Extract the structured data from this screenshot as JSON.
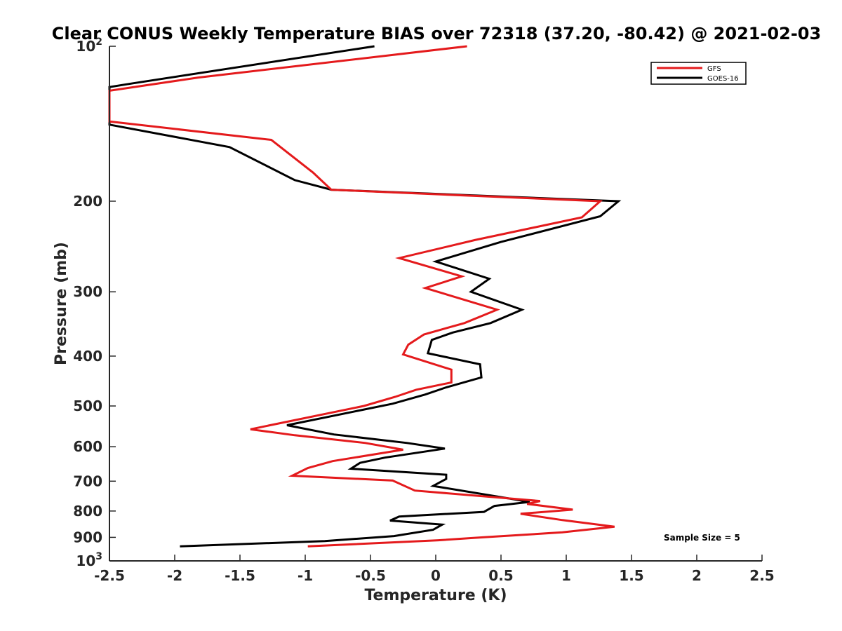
{
  "chart_data": {
    "type": "line",
    "title": "Clear CONUS Weekly Temperature BIAS over 72318 (37.20, -80.42) @ 2021-02-03",
    "xlabel": "Temperature (K)",
    "ylabel": "Pressure (mb)",
    "xlim": [
      -2.5,
      2.5
    ],
    "ylim": [
      100,
      1000
    ],
    "yscale": "log",
    "yreversed": true,
    "grid": false,
    "legend_position": "top-right",
    "x_ticks": [
      -2.5,
      -2,
      -1.5,
      -1,
      -0.5,
      0,
      0.5,
      1,
      1.5,
      2,
      2.5
    ],
    "x_tick_labels": [
      "-2.5",
      "-2",
      "-1.5",
      "-1",
      "-0.5",
      "0",
      "0.5",
      "1",
      "1.5",
      "2",
      "2.5"
    ],
    "y_ticks": [
      100,
      200,
      300,
      400,
      500,
      600,
      700,
      800,
      900,
      1000
    ],
    "y_tick_labels": [
      {
        "base": "10",
        "exp": "2"
      },
      {
        "base": "200",
        "exp": ""
      },
      {
        "base": "300",
        "exp": ""
      },
      {
        "base": "400",
        "exp": ""
      },
      {
        "base": "500",
        "exp": ""
      },
      {
        "base": "600",
        "exp": ""
      },
      {
        "base": "700",
        "exp": ""
      },
      {
        "base": "800",
        "exp": ""
      },
      {
        "base": "900",
        "exp": ""
      },
      {
        "base": "10",
        "exp": "3"
      }
    ],
    "annotation": "Sample Size = 5",
    "series": [
      {
        "name": "GFS",
        "color": "#e41a1c",
        "points": [
          [
            0.24,
            100
          ],
          [
            -1.82,
            115
          ],
          [
            -2.5,
            122
          ],
          [
            -2.5,
            140
          ],
          [
            -1.26,
            152
          ],
          [
            -0.94,
            176
          ],
          [
            -0.8,
            190
          ],
          [
            1.26,
            200
          ],
          [
            1.12,
            215
          ],
          [
            0.3,
            238
          ],
          [
            -0.28,
            258
          ],
          [
            0.2,
            280
          ],
          [
            -0.08,
            295
          ],
          [
            0.47,
            325
          ],
          [
            0.22,
            345
          ],
          [
            -0.09,
            363
          ],
          [
            -0.21,
            380
          ],
          [
            -0.25,
            397
          ],
          [
            0.12,
            425
          ],
          [
            0.12,
            450
          ],
          [
            -0.15,
            465
          ],
          [
            -0.31,
            480
          ],
          [
            -0.55,
            500
          ],
          [
            -1.42,
            555
          ],
          [
            -1.08,
            570
          ],
          [
            -0.54,
            590
          ],
          [
            -0.25,
            608
          ],
          [
            -0.79,
            640
          ],
          [
            -0.98,
            660
          ],
          [
            -1.1,
            683
          ],
          [
            -0.33,
            698
          ],
          [
            -0.16,
            730
          ],
          [
            0.8,
            765
          ],
          [
            0.7,
            775
          ],
          [
            1.05,
            795
          ],
          [
            0.65,
            810
          ],
          [
            0.97,
            833
          ],
          [
            1.37,
            858
          ],
          [
            0.97,
            880
          ],
          [
            0.36,
            900
          ],
          [
            0.02,
            912
          ],
          [
            -0.98,
            937
          ]
        ]
      },
      {
        "name": "GOES-16",
        "color": "#000000",
        "points": [
          [
            -0.47,
            100
          ],
          [
            -2.32,
            118
          ],
          [
            -2.5,
            120
          ],
          [
            -2.5,
            142
          ],
          [
            -1.58,
            157
          ],
          [
            -1.08,
            182
          ],
          [
            -0.8,
            190
          ],
          [
            1.4,
            200
          ],
          [
            1.26,
            214
          ],
          [
            0.5,
            240
          ],
          [
            0,
            262
          ],
          [
            0.41,
            283
          ],
          [
            0.27,
            300
          ],
          [
            0.66,
            325
          ],
          [
            0.42,
            345
          ],
          [
            0.13,
            360
          ],
          [
            -0.03,
            372
          ],
          [
            -0.06,
            395
          ],
          [
            0.34,
            415
          ],
          [
            0.35,
            440
          ],
          [
            0.08,
            460
          ],
          [
            -0.08,
            475
          ],
          [
            -0.33,
            495
          ],
          [
            -1.14,
            545
          ],
          [
            -0.78,
            568
          ],
          [
            -0.22,
            590
          ],
          [
            0.07,
            605
          ],
          [
            -0.39,
            630
          ],
          [
            -0.58,
            645
          ],
          [
            -0.65,
            662
          ],
          [
            0.08,
            680
          ],
          [
            0.08,
            693
          ],
          [
            -0.02,
            715
          ],
          [
            0.72,
            768
          ],
          [
            0.45,
            782
          ],
          [
            0.37,
            803
          ],
          [
            -0.28,
            820
          ],
          [
            -0.35,
            835
          ],
          [
            0.05,
            850
          ],
          [
            -0.02,
            870
          ],
          [
            -0.32,
            895
          ],
          [
            -0.85,
            915
          ],
          [
            -1.96,
            937
          ]
        ]
      }
    ]
  }
}
